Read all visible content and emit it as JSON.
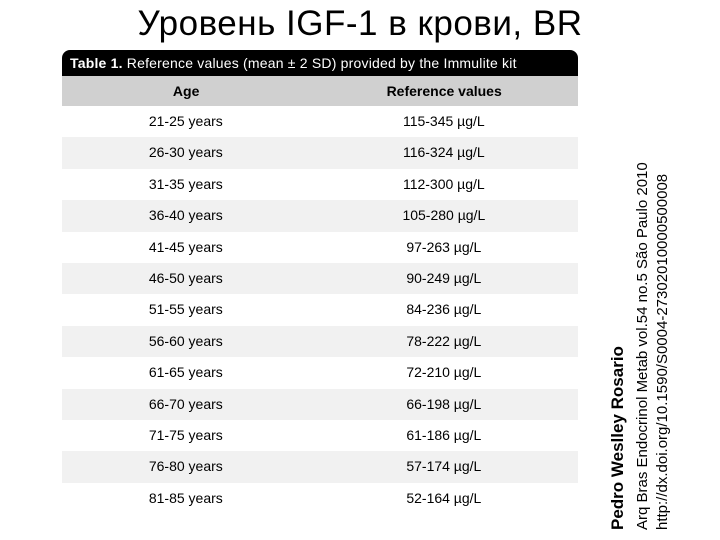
{
  "title": "Уровень IGF-1 в крови, BR",
  "table": {
    "caption_prefix": "Table 1.",
    "caption_rest": " Reference values (mean ± 2 SD) provided by the Immulite kit",
    "columns": {
      "age": "Age",
      "ref": "Reference values"
    },
    "rows": [
      {
        "age": "21-25 years",
        "val": "115-345 µg/L"
      },
      {
        "age": "26-30 years",
        "val": "116-324 µg/L"
      },
      {
        "age": "31-35 years",
        "val": "112-300 µg/L"
      },
      {
        "age": "36-40 years",
        "val": "105-280 µg/L"
      },
      {
        "age": "41-45 years",
        "val": "97-263 µg/L"
      },
      {
        "age": "46-50 years",
        "val": "90-249 µg/L"
      },
      {
        "age": "51-55 years",
        "val": "84-236 µg/L"
      },
      {
        "age": "56-60 years",
        "val": "78-222 µg/L"
      },
      {
        "age": "61-65 years",
        "val": "72-210 µg/L"
      },
      {
        "age": "66-70 years",
        "val": "66-198 µg/L"
      },
      {
        "age": "71-75 years",
        "val": "61-186 µg/L"
      },
      {
        "age": "76-80 years",
        "val": "57-174 µg/L"
      },
      {
        "age": "81-85 years",
        "val": "52-164 µg/L"
      }
    ],
    "colors": {
      "caption_bg": "#000000",
      "caption_fg": "#ffffff",
      "header_bg": "#d0d0d0",
      "row_even_bg": "#f1f1f1",
      "row_odd_bg": "#ffffff",
      "text": "#000000"
    },
    "font_sizes": {
      "caption": 14,
      "header": 14,
      "body": 14
    }
  },
  "citation": {
    "author": "Pedro Weslley Rosario",
    "journal": "Arq Bras Endocrinol Metab vol.54 no.5 São Paulo  2010",
    "doi": "http://dx.doi.org/10.1590/S0004-27302010000500008"
  }
}
